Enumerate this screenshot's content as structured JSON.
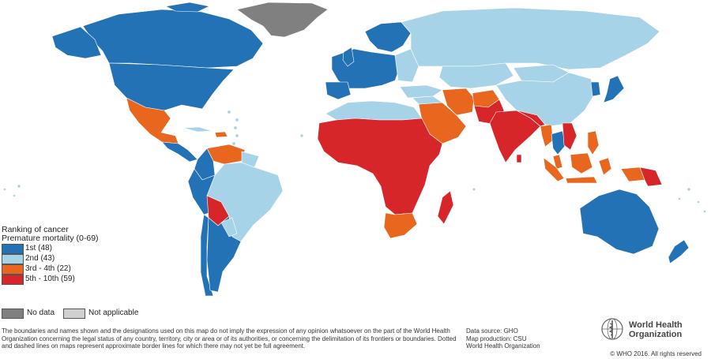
{
  "map": {
    "colors": {
      "rank_1st": "#2372b6",
      "rank_2nd": "#a7d3e8",
      "rank_3rd_4th": "#e8661e",
      "rank_5th_10th": "#d7262a",
      "no_data": "#808080",
      "not_applicable": "#d0d0d0",
      "border": "#ffffff"
    }
  },
  "legend": {
    "title_line1": "Ranking of cancer",
    "title_line2": "Premature mortality (0-69)",
    "items": [
      {
        "label": "1st (48)",
        "color": "#2372b6"
      },
      {
        "label": "2nd (43)",
        "color": "#a7d3e8"
      },
      {
        "label": "3rd - 4th (22)",
        "color": "#e8661e"
      },
      {
        "label": "5th - 10th (59)",
        "color": "#d7262a"
      }
    ],
    "no_data": {
      "label": "No data",
      "color": "#808080"
    },
    "not_applicable": {
      "label": "Not applicable",
      "color": "#d0d0d0"
    }
  },
  "footer": {
    "disclaimer": "The boundaries and names shown and the designations used on this map do not imply the expression of any opinion whatsoever on the part of the World Health Organization concerning the legal status of any country, territory, city or area or of its authorities, or concerning the delimitation of its frontiers or boundaries. Dotted and dashed lines on maps represent approximate border lines for which there may not yet be full agreement.",
    "data_source": "Data source: GHO",
    "map_production": "Map production: CSU",
    "organization": "World Health Organization",
    "logo_text_line1": "World Health",
    "logo_text_line2": "Organization",
    "copyright": "© WHO 2016. All rights reserved"
  }
}
